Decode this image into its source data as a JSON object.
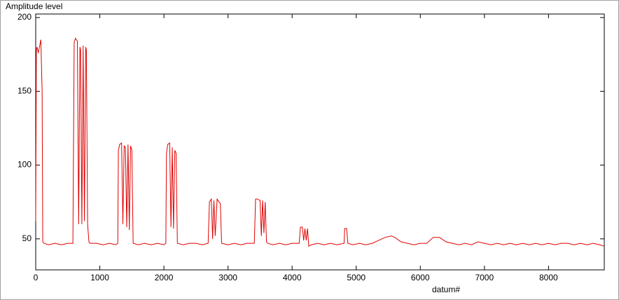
{
  "chart_data": {
    "type": "line",
    "title": "Amplitude level",
    "x_label": "datum#",
    "x": [
      0,
      10,
      20,
      40,
      80,
      100,
      110,
      130,
      200,
      300,
      400,
      500,
      580,
      600,
      620,
      650,
      670,
      690,
      700,
      720,
      740,
      760,
      780,
      790,
      810,
      830,
      850,
      950,
      1050,
      1150,
      1250,
      1280,
      1290,
      1310,
      1340,
      1360,
      1380,
      1400,
      1420,
      1440,
      1460,
      1480,
      1500,
      1520,
      1600,
      1700,
      1800,
      1900,
      2000,
      2030,
      2040,
      2060,
      2090,
      2110,
      2130,
      2150,
      2170,
      2190,
      2210,
      2300,
      2400,
      2500,
      2600,
      2690,
      2710,
      2740,
      2760,
      2780,
      2800,
      2830,
      2860,
      2880,
      2900,
      3000,
      3100,
      3200,
      3300,
      3410,
      3430,
      3460,
      3500,
      3520,
      3540,
      3560,
      3580,
      3600,
      3620,
      3700,
      3800,
      3900,
      4000,
      4110,
      4130,
      4160,
      4180,
      4200,
      4220,
      4240,
      4260,
      4300,
      4400,
      4500,
      4600,
      4700,
      4810,
      4820,
      4850,
      4870,
      4950,
      5050,
      5150,
      5250,
      5350,
      5450,
      5550,
      5600,
      5700,
      5800,
      5900,
      6000,
      6100,
      6200,
      6300,
      6400,
      6500,
      6600,
      6700,
      6800,
      6900,
      7000,
      7100,
      7200,
      7300,
      7400,
      7500,
      7600,
      7700,
      7800,
      7900,
      8000,
      8100,
      8200,
      8300,
      8400,
      8500,
      8600,
      8700,
      8800,
      8870
    ],
    "series": [
      {
        "color": "#e00000",
        "values": [
          62,
          178,
          180,
          176,
          185,
          150,
          48,
          47,
          46,
          47,
          46,
          47,
          47,
          183,
          186,
          184,
          60,
          180,
          178,
          60,
          181,
          62,
          180,
          178,
          60,
          48,
          47,
          47,
          46,
          47,
          46,
          47,
          110,
          114,
          115,
          60,
          113,
          112,
          58,
          114,
          56,
          113,
          110,
          47,
          46,
          47,
          46,
          47,
          46,
          47,
          108,
          114,
          115,
          58,
          112,
          57,
          110,
          108,
          47,
          46,
          47,
          47,
          46,
          47,
          75,
          77,
          50,
          76,
          52,
          77,
          75,
          74,
          47,
          46,
          47,
          46,
          47,
          47,
          77,
          77,
          76,
          52,
          76,
          54,
          75,
          48,
          47,
          46,
          47,
          46,
          47,
          47,
          58,
          58,
          49,
          57,
          49,
          57,
          45,
          46,
          47,
          46,
          47,
          46,
          47,
          57,
          57,
          47,
          46,
          47,
          46,
          47,
          49,
          51,
          52,
          51,
          48,
          47,
          46,
          47,
          47,
          51,
          51,
          48,
          47,
          46,
          47,
          46,
          48,
          47,
          46,
          47,
          46,
          47,
          46,
          47,
          46,
          47,
          46,
          47,
          46,
          47,
          47,
          46,
          47,
          46,
          47,
          46,
          45
        ]
      }
    ],
    "xlim": [
      0,
      8870
    ],
    "ylim": [
      29,
      202.4
    ],
    "xticks": [
      0,
      1000,
      2000,
      3000,
      4000,
      5000,
      6000,
      7000,
      8000
    ],
    "yticks": [
      50,
      100,
      150,
      200
    ]
  }
}
